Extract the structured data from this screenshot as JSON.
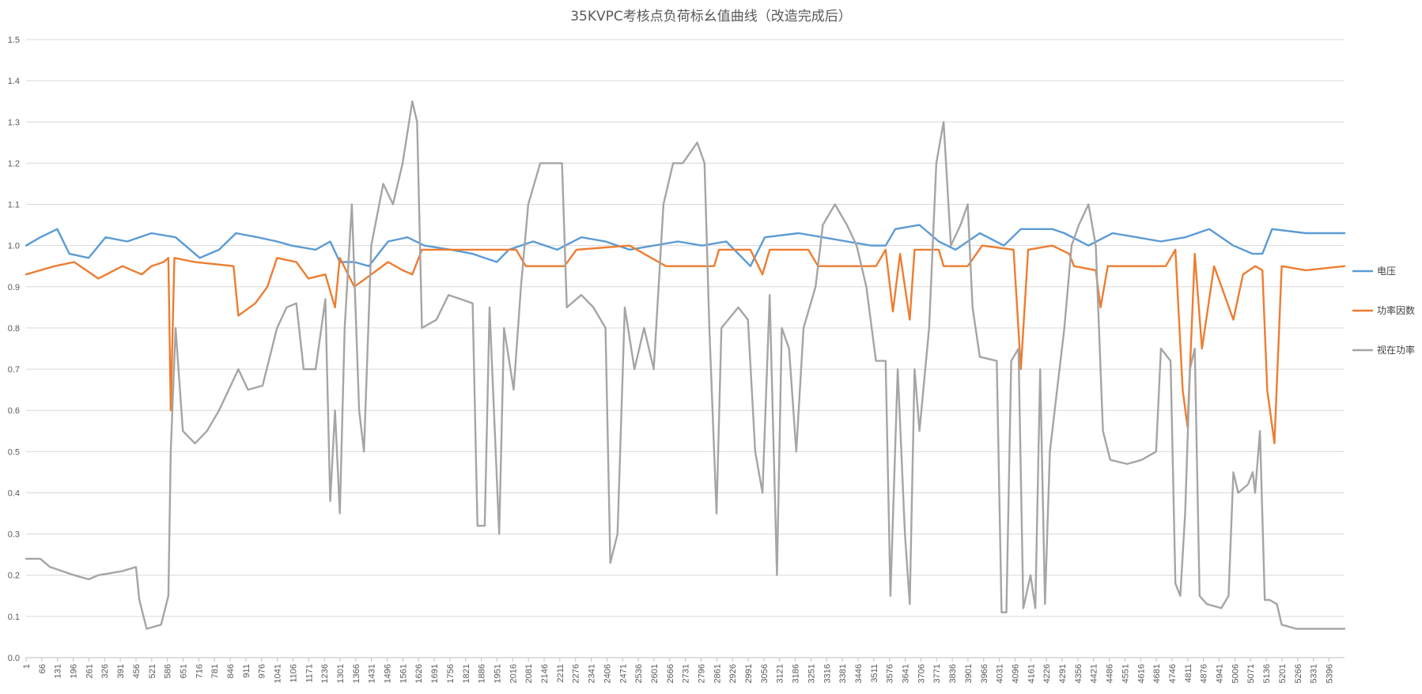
{
  "chart_data": {
    "type": "line",
    "title": "35KVPC考核点负荷标幺值曲线（改造完成后）",
    "xlabel": "",
    "ylabel": "",
    "ylim": [
      0.0,
      1.5
    ],
    "y_ticks": [
      "0.0",
      "0.1",
      "0.2",
      "0.3",
      "0.4",
      "0.5",
      "0.6",
      "0.7",
      "0.8",
      "0.9",
      "1.0",
      "1.1",
      "1.2",
      "1.3",
      "1.4",
      "1.5"
    ],
    "x_range": [
      1,
      5460
    ],
    "x_ticks": [
      "1",
      "66",
      "131",
      "196",
      "261",
      "326",
      "391",
      "456",
      "521",
      "586",
      "651",
      "716",
      "781",
      "846",
      "911",
      "976",
      "1041",
      "1106",
      "1171",
      "1236",
      "1301",
      "1366",
      "1431",
      "1496",
      "1561",
      "1626",
      "1691",
      "1756",
      "1821",
      "1886",
      "1951",
      "2016",
      "2081",
      "2146",
      "2211",
      "2276",
      "2341",
      "2406",
      "2471",
      "2536",
      "2601",
      "2666",
      "2731",
      "2796",
      "2861",
      "2926",
      "2991",
      "3056",
      "3121",
      "3186",
      "3251",
      "3316",
      "3381",
      "3446",
      "3511",
      "3576",
      "3641",
      "3706",
      "3771",
      "3836",
      "3901",
      "3966",
      "4031",
      "4096",
      "4161",
      "4226",
      "4291",
      "4356",
      "4421",
      "4486",
      "4551",
      "4616",
      "4681",
      "4746",
      "4811",
      "4876",
      "4941",
      "5006",
      "5071",
      "5136",
      "5201",
      "5266",
      "5331",
      "5396"
    ],
    "grid": "horizontal",
    "legend_position": "right",
    "series": [
      {
        "name": "电压",
        "color": "#5B9BD5",
        "points": [
          [
            1,
            1.0
          ],
          [
            60,
            1.02
          ],
          [
            130,
            1.04
          ],
          [
            180,
            0.98
          ],
          [
            260,
            0.97
          ],
          [
            330,
            1.02
          ],
          [
            420,
            1.01
          ],
          [
            520,
            1.03
          ],
          [
            620,
            1.02
          ],
          [
            720,
            0.97
          ],
          [
            800,
            0.99
          ],
          [
            870,
            1.03
          ],
          [
            960,
            1.02
          ],
          [
            1040,
            1.01
          ],
          [
            1100,
            1.0
          ],
          [
            1200,
            0.99
          ],
          [
            1260,
            1.01
          ],
          [
            1300,
            0.96
          ],
          [
            1360,
            0.96
          ],
          [
            1420,
            0.95
          ],
          [
            1500,
            1.01
          ],
          [
            1580,
            1.02
          ],
          [
            1650,
            1.0
          ],
          [
            1760,
            0.99
          ],
          [
            1850,
            0.98
          ],
          [
            1950,
            0.96
          ],
          [
            2000,
            0.99
          ],
          [
            2100,
            1.01
          ],
          [
            2200,
            0.99
          ],
          [
            2300,
            1.02
          ],
          [
            2400,
            1.01
          ],
          [
            2500,
            0.99
          ],
          [
            2600,
            1.0
          ],
          [
            2700,
            1.01
          ],
          [
            2800,
            1.0
          ],
          [
            2900,
            1.01
          ],
          [
            3000,
            0.95
          ],
          [
            3060,
            1.02
          ],
          [
            3200,
            1.03
          ],
          [
            3300,
            1.02
          ],
          [
            3400,
            1.01
          ],
          [
            3500,
            1.0
          ],
          [
            3560,
            1.0
          ],
          [
            3600,
            1.04
          ],
          [
            3700,
            1.05
          ],
          [
            3780,
            1.01
          ],
          [
            3850,
            0.99
          ],
          [
            3950,
            1.03
          ],
          [
            4050,
            1.0
          ],
          [
            4120,
            1.04
          ],
          [
            4250,
            1.04
          ],
          [
            4300,
            1.03
          ],
          [
            4400,
            1.0
          ],
          [
            4500,
            1.03
          ],
          [
            4600,
            1.02
          ],
          [
            4700,
            1.01
          ],
          [
            4800,
            1.02
          ],
          [
            4900,
            1.04
          ],
          [
            5000,
            1.0
          ],
          [
            5080,
            0.98
          ],
          [
            5120,
            0.98
          ],
          [
            5160,
            1.04
          ],
          [
            5300,
            1.03
          ],
          [
            5460,
            1.03
          ]
        ]
      },
      {
        "name": "功率因数",
        "color": "#ED7D31",
        "points": [
          [
            1,
            0.93
          ],
          [
            60,
            0.94
          ],
          [
            120,
            0.95
          ],
          [
            200,
            0.96
          ],
          [
            300,
            0.92
          ],
          [
            400,
            0.95
          ],
          [
            480,
            0.93
          ],
          [
            520,
            0.95
          ],
          [
            570,
            0.96
          ],
          [
            590,
            0.97
          ],
          [
            600,
            0.6
          ],
          [
            615,
            0.97
          ],
          [
            700,
            0.96
          ],
          [
            860,
            0.95
          ],
          [
            880,
            0.83
          ],
          [
            950,
            0.86
          ],
          [
            1000,
            0.9
          ],
          [
            1040,
            0.97
          ],
          [
            1120,
            0.96
          ],
          [
            1170,
            0.92
          ],
          [
            1240,
            0.93
          ],
          [
            1280,
            0.85
          ],
          [
            1300,
            0.97
          ],
          [
            1360,
            0.9
          ],
          [
            1430,
            0.93
          ],
          [
            1500,
            0.96
          ],
          [
            1560,
            0.94
          ],
          [
            1600,
            0.93
          ],
          [
            1640,
            0.99
          ],
          [
            1900,
            0.99
          ],
          [
            1960,
            0.99
          ],
          [
            2030,
            0.99
          ],
          [
            2070,
            0.95
          ],
          [
            2230,
            0.95
          ],
          [
            2280,
            0.99
          ],
          [
            2500,
            1.0
          ],
          [
            2650,
            0.95
          ],
          [
            2850,
            0.95
          ],
          [
            2870,
            0.99
          ],
          [
            3000,
            0.99
          ],
          [
            3050,
            0.93
          ],
          [
            3080,
            0.99
          ],
          [
            3180,
            0.99
          ],
          [
            3240,
            0.99
          ],
          [
            3280,
            0.95
          ],
          [
            3520,
            0.95
          ],
          [
            3560,
            0.99
          ],
          [
            3590,
            0.84
          ],
          [
            3620,
            0.98
          ],
          [
            3660,
            0.82
          ],
          [
            3680,
            0.99
          ],
          [
            3780,
            0.99
          ],
          [
            3800,
            0.95
          ],
          [
            3900,
            0.95
          ],
          [
            3960,
            1.0
          ],
          [
            4090,
            0.99
          ],
          [
            4120,
            0.7
          ],
          [
            4150,
            0.99
          ],
          [
            4250,
            1.0
          ],
          [
            4320,
            0.98
          ],
          [
            4340,
            0.95
          ],
          [
            4430,
            0.94
          ],
          [
            4450,
            0.85
          ],
          [
            4480,
            0.95
          ],
          [
            4720,
            0.95
          ],
          [
            4760,
            0.99
          ],
          [
            4790,
            0.65
          ],
          [
            4810,
            0.56
          ],
          [
            4840,
            0.98
          ],
          [
            4870,
            0.75
          ],
          [
            4920,
            0.95
          ],
          [
            5000,
            0.82
          ],
          [
            5040,
            0.93
          ],
          [
            5090,
            0.95
          ],
          [
            5120,
            0.94
          ],
          [
            5140,
            0.65
          ],
          [
            5170,
            0.52
          ],
          [
            5200,
            0.95
          ],
          [
            5300,
            0.94
          ],
          [
            5460,
            0.95
          ]
        ]
      },
      {
        "name": "视在功率",
        "color": "#A5A5A5",
        "points": [
          [
            1,
            0.24
          ],
          [
            60,
            0.24
          ],
          [
            100,
            0.22
          ],
          [
            200,
            0.2
          ],
          [
            260,
            0.19
          ],
          [
            300,
            0.2
          ],
          [
            400,
            0.21
          ],
          [
            456,
            0.22
          ],
          [
            470,
            0.14
          ],
          [
            500,
            0.07
          ],
          [
            560,
            0.08
          ],
          [
            590,
            0.15
          ],
          [
            600,
            0.5
          ],
          [
            620,
            0.8
          ],
          [
            650,
            0.55
          ],
          [
            700,
            0.52
          ],
          [
            750,
            0.55
          ],
          [
            800,
            0.6
          ],
          [
            880,
            0.7
          ],
          [
            920,
            0.65
          ],
          [
            980,
            0.66
          ],
          [
            1040,
            0.8
          ],
          [
            1080,
            0.85
          ],
          [
            1120,
            0.86
          ],
          [
            1150,
            0.7
          ],
          [
            1200,
            0.7
          ],
          [
            1240,
            0.87
          ],
          [
            1260,
            0.38
          ],
          [
            1280,
            0.6
          ],
          [
            1300,
            0.35
          ],
          [
            1320,
            0.8
          ],
          [
            1350,
            1.1
          ],
          [
            1380,
            0.6
          ],
          [
            1400,
            0.5
          ],
          [
            1430,
            1.0
          ],
          [
            1480,
            1.15
          ],
          [
            1520,
            1.1
          ],
          [
            1560,
            1.2
          ],
          [
            1600,
            1.35
          ],
          [
            1620,
            1.3
          ],
          [
            1640,
            0.8
          ],
          [
            1700,
            0.82
          ],
          [
            1750,
            0.88
          ],
          [
            1800,
            0.87
          ],
          [
            1850,
            0.86
          ],
          [
            1870,
            0.32
          ],
          [
            1900,
            0.32
          ],
          [
            1920,
            0.85
          ],
          [
            1960,
            0.3
          ],
          [
            1980,
            0.8
          ],
          [
            2020,
            0.65
          ],
          [
            2050,
            0.9
          ],
          [
            2080,
            1.1
          ],
          [
            2130,
            1.2
          ],
          [
            2180,
            1.2
          ],
          [
            2220,
            1.2
          ],
          [
            2240,
            0.85
          ],
          [
            2300,
            0.88
          ],
          [
            2350,
            0.85
          ],
          [
            2400,
            0.8
          ],
          [
            2420,
            0.23
          ],
          [
            2450,
            0.3
          ],
          [
            2480,
            0.85
          ],
          [
            2520,
            0.7
          ],
          [
            2560,
            0.8
          ],
          [
            2600,
            0.7
          ],
          [
            2640,
            1.1
          ],
          [
            2680,
            1.2
          ],
          [
            2720,
            1.2
          ],
          [
            2780,
            1.25
          ],
          [
            2810,
            1.2
          ],
          [
            2830,
            0.8
          ],
          [
            2860,
            0.35
          ],
          [
            2880,
            0.8
          ],
          [
            2950,
            0.85
          ],
          [
            2990,
            0.82
          ],
          [
            3020,
            0.5
          ],
          [
            3050,
            0.4
          ],
          [
            3080,
            0.88
          ],
          [
            3110,
            0.2
          ],
          [
            3130,
            0.8
          ],
          [
            3160,
            0.75
          ],
          [
            3190,
            0.5
          ],
          [
            3220,
            0.8
          ],
          [
            3270,
            0.9
          ],
          [
            3300,
            1.05
          ],
          [
            3350,
            1.1
          ],
          [
            3400,
            1.05
          ],
          [
            3440,
            1.0
          ],
          [
            3480,
            0.9
          ],
          [
            3520,
            0.72
          ],
          [
            3560,
            0.72
          ],
          [
            3580,
            0.15
          ],
          [
            3610,
            0.7
          ],
          [
            3640,
            0.3
          ],
          [
            3660,
            0.13
          ],
          [
            3680,
            0.7
          ],
          [
            3700,
            0.55
          ],
          [
            3740,
            0.8
          ],
          [
            3770,
            1.2
          ],
          [
            3800,
            1.3
          ],
          [
            3830,
            1.0
          ],
          [
            3870,
            1.05
          ],
          [
            3900,
            1.1
          ],
          [
            3920,
            0.85
          ],
          [
            3950,
            0.73
          ],
          [
            4020,
            0.72
          ],
          [
            4040,
            0.11
          ],
          [
            4060,
            0.11
          ],
          [
            4080,
            0.72
          ],
          [
            4110,
            0.75
          ],
          [
            4130,
            0.12
          ],
          [
            4160,
            0.2
          ],
          [
            4180,
            0.12
          ],
          [
            4200,
            0.7
          ],
          [
            4220,
            0.13
          ],
          [
            4240,
            0.5
          ],
          [
            4270,
            0.65
          ],
          [
            4300,
            0.8
          ],
          [
            4330,
            1.0
          ],
          [
            4360,
            1.05
          ],
          [
            4400,
            1.1
          ],
          [
            4430,
            1.0
          ],
          [
            4460,
            0.55
          ],
          [
            4490,
            0.48
          ],
          [
            4560,
            0.47
          ],
          [
            4620,
            0.48
          ],
          [
            4680,
            0.5
          ],
          [
            4700,
            0.75
          ],
          [
            4740,
            0.72
          ],
          [
            4760,
            0.18
          ],
          [
            4780,
            0.15
          ],
          [
            4800,
            0.35
          ],
          [
            4820,
            0.7
          ],
          [
            4840,
            0.75
          ],
          [
            4860,
            0.15
          ],
          [
            4890,
            0.13
          ],
          [
            4950,
            0.12
          ],
          [
            4980,
            0.15
          ],
          [
            5000,
            0.45
          ],
          [
            5020,
            0.4
          ],
          [
            5060,
            0.42
          ],
          [
            5080,
            0.45
          ],
          [
            5090,
            0.4
          ],
          [
            5110,
            0.55
          ],
          [
            5130,
            0.14
          ],
          [
            5150,
            0.14
          ],
          [
            5180,
            0.13
          ],
          [
            5200,
            0.08
          ],
          [
            5260,
            0.07
          ],
          [
            5330,
            0.07
          ],
          [
            5400,
            0.07
          ],
          [
            5460,
            0.07
          ]
        ]
      }
    ]
  }
}
